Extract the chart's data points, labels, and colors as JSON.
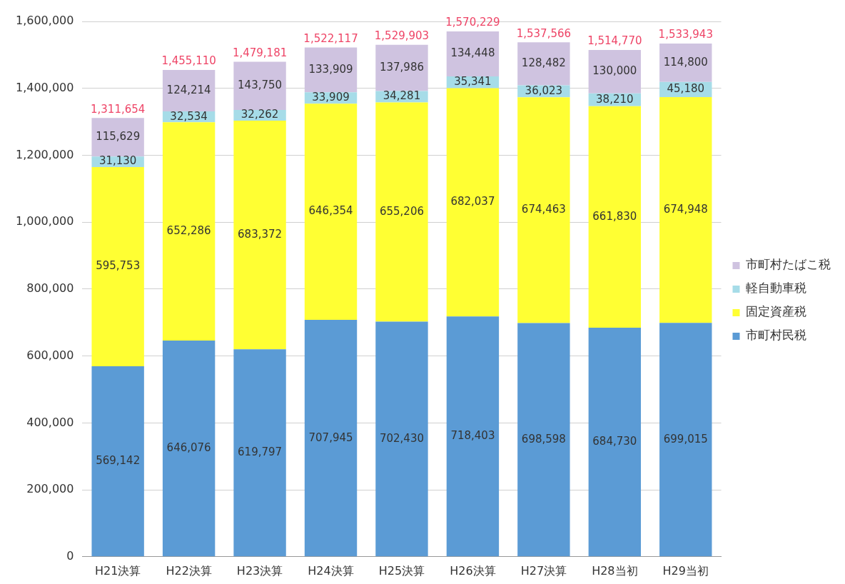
{
  "chart_data": {
    "type": "bar",
    "stacked": true,
    "categories": [
      "H21決算",
      "H22決算",
      "H23決算",
      "H24決算",
      "H25決算",
      "H26決算",
      "H27決算",
      "H28当初",
      "H29当初"
    ],
    "series": [
      {
        "name": "市町村民税",
        "color": "#5b9bd5",
        "values": [
          569142,
          646076,
          619797,
          707945,
          702430,
          718403,
          698598,
          684730,
          699015
        ],
        "value_labels": [
          "569,142",
          "646,076",
          "619,797",
          "707,945",
          "702,430",
          "718,403",
          "698,598",
          "684,730",
          "699,015"
        ]
      },
      {
        "name": "固定資産税",
        "color": "#ffff33",
        "values": [
          595753,
          652286,
          683372,
          646354,
          655206,
          682037,
          674463,
          661830,
          674948
        ],
        "value_labels": [
          "595,753",
          "652,286",
          "683,372",
          "646,354",
          "655,206",
          "682,037",
          "674,463",
          "661,830",
          "674,948"
        ]
      },
      {
        "name": "軽自動車税",
        "color": "#a6dce8",
        "values": [
          31130,
          32534,
          32262,
          33909,
          34281,
          35341,
          36023,
          38210,
          45180
        ],
        "value_labels": [
          "31,130",
          "32,534",
          "32,262",
          "33,909",
          "34,281",
          "35,341",
          "36,023",
          "38,210",
          "45,180"
        ]
      },
      {
        "name": "市町村たばこ税",
        "color": "#cfc3e0",
        "values": [
          115629,
          124214,
          143750,
          133909,
          137986,
          134448,
          128482,
          130000,
          114800
        ],
        "value_labels": [
          "115,629",
          "124,214",
          "143,750",
          "133,909",
          "137,986",
          "134,448",
          "128,482",
          "130,000",
          "114,800"
        ]
      }
    ],
    "totals": [
      "1,311,654",
      "1,455,110",
      "1,479,181",
      "1,522,117",
      "1,529,903",
      "1,570,229",
      "1,537,566",
      "1,514,770",
      "1,533,943"
    ],
    "ylim": [
      0,
      1600000
    ],
    "yticks": [
      0,
      {
        "value": 200000,
        "label": "200,000"
      },
      {
        "value": 400000,
        "label": "400,000"
      },
      {
        "value": 600000,
        "label": "600,000"
      },
      {
        "value": 800000,
        "label": "800,000"
      },
      {
        "value": 1000000,
        "label": "1,000,000"
      },
      {
        "value": 1200000,
        "label": "1,200,000"
      },
      {
        "value": 1400000,
        "label": "1,400,000"
      },
      {
        "value": 1600000,
        "label": "1,600,000"
      }
    ],
    "grid": "y",
    "legend": "right"
  }
}
